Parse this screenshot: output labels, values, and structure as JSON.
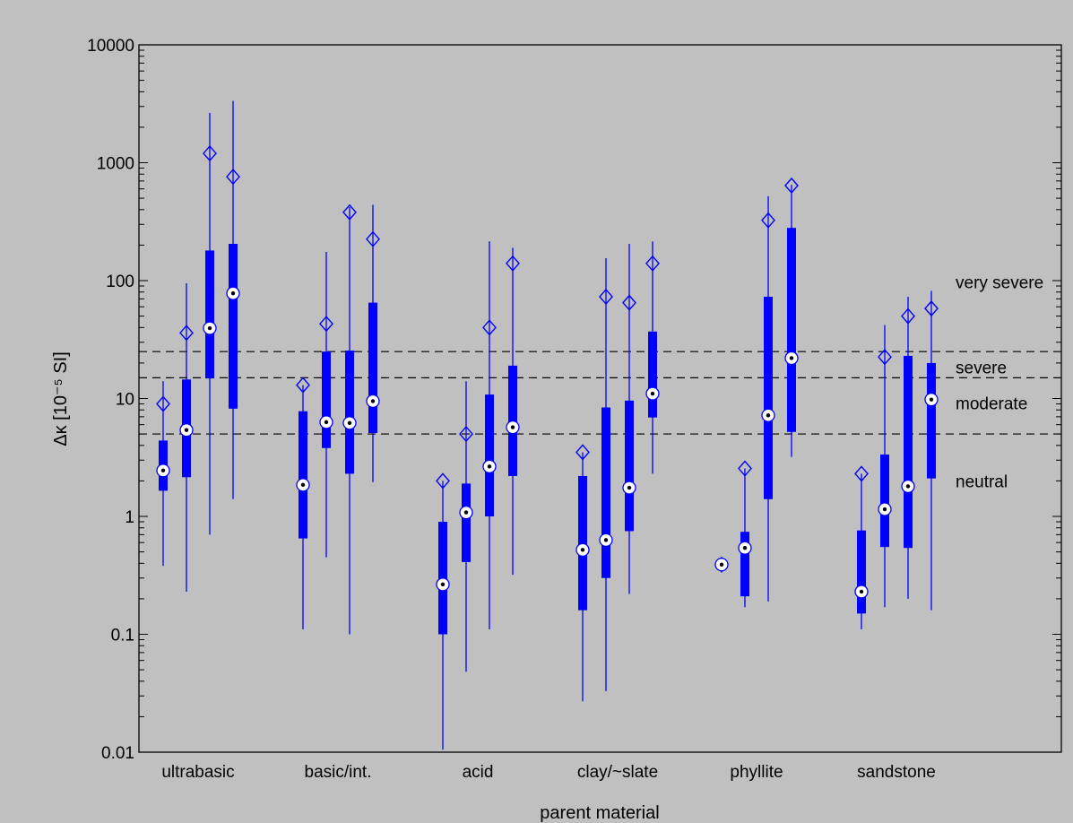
{
  "chart_data": {
    "type": "box",
    "xlabel": "parent material",
    "ylabel": "Δκ [10⁻⁵ SI]",
    "yscale": "log",
    "ylim": [
      0.01,
      10000
    ],
    "yticks": [
      "0.01",
      "0.1",
      "1",
      "10",
      "100",
      "1000",
      "10000"
    ],
    "grid": false,
    "colors": {
      "box": "#0000ff",
      "background": "#c0c0c0",
      "threshold_line": "#000000"
    },
    "thresholds": [
      {
        "value": 5,
        "style": "dashed"
      },
      {
        "value": 15,
        "style": "dashed"
      },
      {
        "value": 25,
        "style": "dashed"
      }
    ],
    "class_labels": [
      {
        "text": "very severe",
        "value": 97
      },
      {
        "text": "severe",
        "value": 18.5
      },
      {
        "text": "moderate",
        "value": 9.2
      },
      {
        "text": "neutral",
        "value": 2
      }
    ],
    "categories": [
      {
        "name": "ultrabasic",
        "boxes": [
          {
            "min": 0.38,
            "q1": 1.65,
            "median": 2.45,
            "q3": 4.4,
            "max": 14,
            "mean": 9
          },
          {
            "min": 0.23,
            "q1": 2.15,
            "median": 5.4,
            "q3": 14.5,
            "max": 95,
            "mean": 36
          },
          {
            "min": 0.7,
            "q1": 14.8,
            "median": 39.5,
            "q3": 180,
            "max": 2650,
            "mean": 1200
          },
          {
            "min": 1.4,
            "q1": 8.2,
            "median": 78,
            "q3": 205,
            "max": 3350,
            "mean": 760
          }
        ]
      },
      {
        "name": "basic/int.",
        "boxes": [
          {
            "min": 0.11,
            "q1": 0.65,
            "median": 1.85,
            "q3": 7.8,
            "max": 13,
            "mean": 13
          },
          {
            "min": 0.45,
            "q1": 3.8,
            "median": 6.3,
            "q3": 25,
            "max": 175,
            "mean": 43
          },
          {
            "min": 0.1,
            "q1": 2.3,
            "median": 6.2,
            "q3": 25.5,
            "max": 420,
            "mean": 380
          },
          {
            "min": 1.95,
            "q1": 5.1,
            "median": 9.5,
            "q3": 65,
            "max": 440,
            "mean": 225
          }
        ]
      },
      {
        "name": "acid",
        "boxes": [
          {
            "min": 0.0105,
            "q1": 0.1,
            "median": 0.265,
            "q3": 0.9,
            "max": 2,
            "mean": 2
          },
          {
            "min": 0.048,
            "q1": 0.41,
            "median": 1.08,
            "q3": 1.9,
            "max": 14,
            "mean": 5
          },
          {
            "min": 0.11,
            "q1": 1,
            "median": 2.65,
            "q3": 10.8,
            "max": 215,
            "mean": 40
          },
          {
            "min": 0.32,
            "q1": 2.2,
            "median": 5.7,
            "q3": 19,
            "max": 190,
            "mean": 140
          }
        ]
      },
      {
        "name": "clay/~slate",
        "boxes": [
          {
            "min": 0.027,
            "q1": 0.16,
            "median": 0.52,
            "q3": 2.2,
            "max": 3.5,
            "mean": 3.5
          },
          {
            "min": 0.033,
            "q1": 0.3,
            "median": 0.63,
            "q3": 8.4,
            "max": 155,
            "mean": 73
          },
          {
            "min": 0.22,
            "q1": 0.75,
            "median": 1.75,
            "q3": 9.6,
            "max": 205,
            "mean": 65
          },
          {
            "min": 2.3,
            "q1": 6.9,
            "median": 11,
            "q3": 37,
            "max": 215,
            "mean": 140
          }
        ]
      },
      {
        "name": "phyllite",
        "boxes": [
          {
            "min": 0.39,
            "q1": 0.39,
            "median": 0.39,
            "q3": 0.39,
            "max": 0.39,
            "mean": 0.39
          },
          {
            "min": 0.17,
            "q1": 0.21,
            "median": 0.54,
            "q3": 0.74,
            "max": 2.55,
            "mean": 2.55
          },
          {
            "min": 0.19,
            "q1": 1.4,
            "median": 7.2,
            "q3": 73,
            "max": 520,
            "mean": 325
          },
          {
            "min": 3.2,
            "q1": 5.2,
            "median": 22,
            "q3": 280,
            "max": 650,
            "mean": 640
          }
        ]
      },
      {
        "name": "sandstone",
        "boxes": [
          {
            "min": 0.11,
            "q1": 0.15,
            "median": 0.23,
            "q3": 0.76,
            "max": 2.3,
            "mean": 2.3
          },
          {
            "min": 0.17,
            "q1": 0.55,
            "median": 1.15,
            "q3": 3.35,
            "max": 42,
            "mean": 22.5
          },
          {
            "min": 0.2,
            "q1": 0.54,
            "median": 1.8,
            "q3": 23,
            "max": 73,
            "mean": 50
          },
          {
            "min": 0.16,
            "q1": 2.1,
            "median": 9.8,
            "q3": 20,
            "max": 82,
            "mean": 58
          }
        ]
      }
    ]
  }
}
